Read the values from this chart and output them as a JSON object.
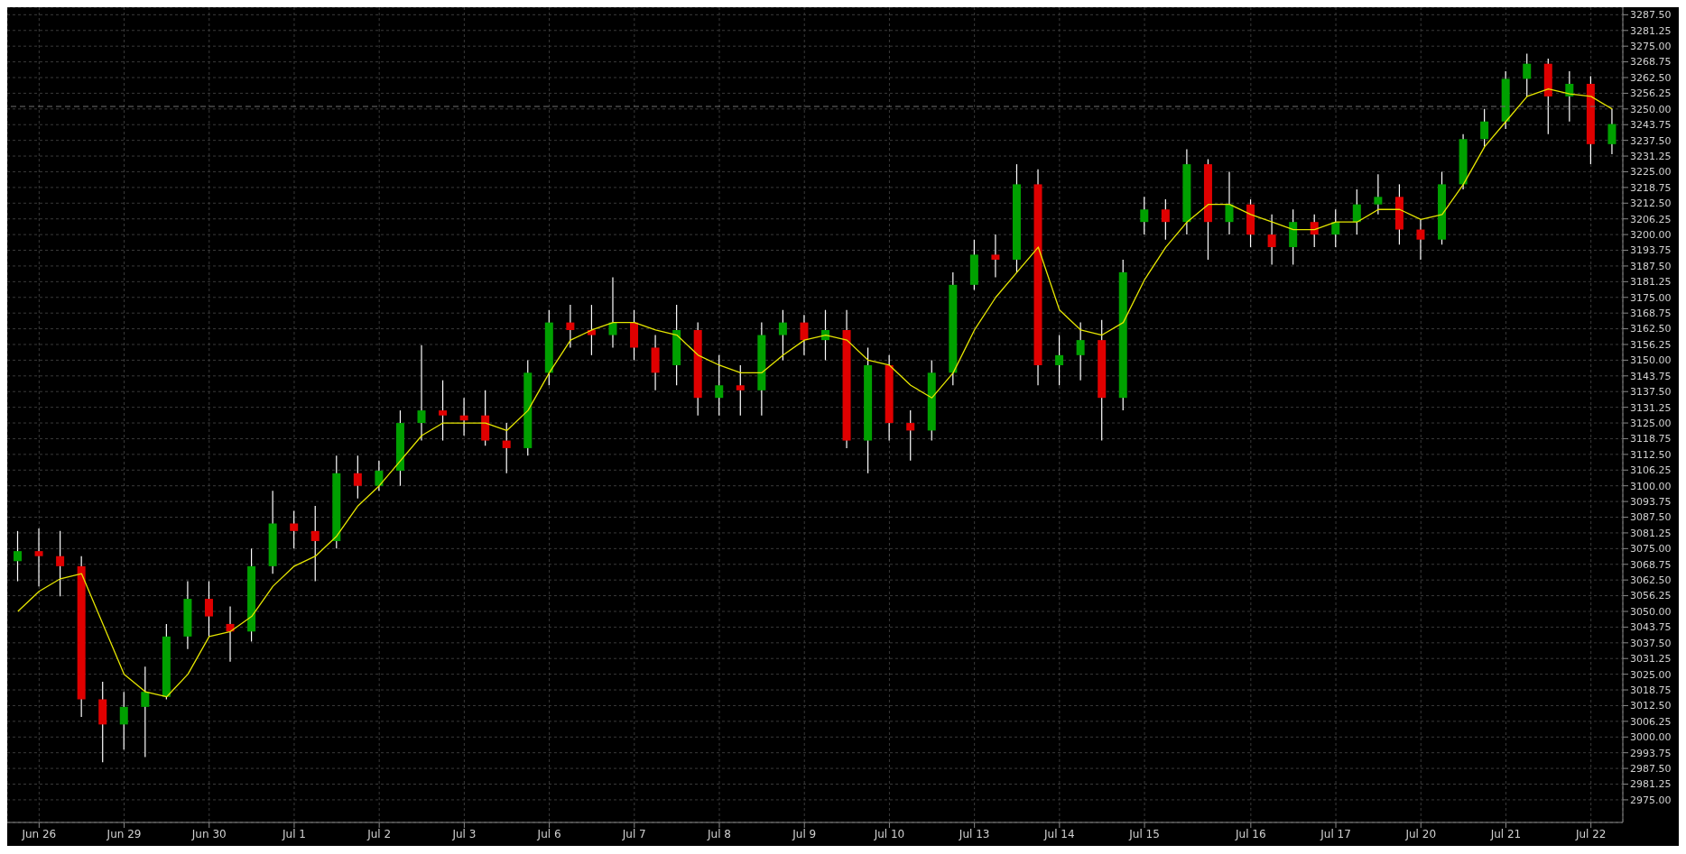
{
  "chart_data": {
    "type": "candlestick",
    "categories": [
      null,
      "Jun 26",
      null,
      null,
      null,
      "Jun 29",
      null,
      null,
      null,
      "Jun 30",
      null,
      null,
      null,
      "Jul 1",
      null,
      null,
      null,
      "Jul 2",
      null,
      null,
      null,
      "Jul 3",
      null,
      null,
      null,
      "Jul 6",
      null,
      null,
      null,
      "Jul 7",
      null,
      null,
      null,
      "Jul 8",
      null,
      null,
      null,
      "Jul 9",
      null,
      null,
      null,
      "Jul 10",
      null,
      null,
      null,
      "Jul 13",
      null,
      null,
      null,
      "Jul 14",
      null,
      null,
      null,
      "Jul 15",
      null,
      null,
      null,
      null,
      "Jul 16",
      null,
      null,
      null,
      "Jul 17",
      null,
      null,
      null,
      "Jul 20",
      null,
      null,
      null,
      "Jul 21",
      null,
      null,
      null,
      "Jul 22",
      null
    ],
    "ohlc": [
      [
        3070,
        3082,
        3062,
        3074
      ],
      [
        3074,
        3083,
        3060,
        3072
      ],
      [
        3072,
        3082,
        3056,
        3068
      ],
      [
        3068,
        3072,
        3008,
        3015
      ],
      [
        3015,
        3022,
        2990,
        3005
      ],
      [
        3005,
        3018,
        2995,
        3012
      ],
      [
        3012,
        3028,
        2992,
        3018
      ],
      [
        3016,
        3045,
        3015,
        3040
      ],
      [
        3040,
        3062,
        3035,
        3055
      ],
      [
        3055,
        3062,
        3040,
        3048
      ],
      [
        3045,
        3052,
        3030,
        3042
      ],
      [
        3042,
        3075,
        3038,
        3068
      ],
      [
        3068,
        3098,
        3065,
        3085
      ],
      [
        3085,
        3090,
        3075,
        3082
      ],
      [
        3082,
        3092,
        3062,
        3078
      ],
      [
        3078,
        3112,
        3075,
        3105
      ],
      [
        3105,
        3112,
        3095,
        3100
      ],
      [
        3100,
        3110,
        3098,
        3106
      ],
      [
        3106,
        3130,
        3100,
        3125
      ],
      [
        3125,
        3156,
        3118,
        3130
      ],
      [
        3130,
        3142,
        3118,
        3128
      ],
      [
        3128,
        3135,
        3120,
        3126
      ],
      [
        3128,
        3138,
        3116,
        3118
      ],
      [
        3118,
        3125,
        3105,
        3115
      ],
      [
        3115,
        3150,
        3112,
        3145
      ],
      [
        3145,
        3170,
        3140,
        3165
      ],
      [
        3165,
        3172,
        3155,
        3162
      ],
      [
        3162,
        3172,
        3152,
        3160
      ],
      [
        3160,
        3183,
        3155,
        3165
      ],
      [
        3165,
        3170,
        3150,
        3155
      ],
      [
        3155,
        3160,
        3138,
        3145
      ],
      [
        3148,
        3172,
        3140,
        3162
      ],
      [
        3162,
        3165,
        3128,
        3135
      ],
      [
        3135,
        3152,
        3128,
        3140
      ],
      [
        3140,
        3148,
        3128,
        3138
      ],
      [
        3138,
        3165,
        3128,
        3160
      ],
      [
        3160,
        3170,
        3150,
        3165
      ],
      [
        3165,
        3168,
        3152,
        3158
      ],
      [
        3158,
        3170,
        3150,
        3162
      ],
      [
        3162,
        3170,
        3115,
        3118
      ],
      [
        3118,
        3155,
        3105,
        3148
      ],
      [
        3148,
        3152,
        3118,
        3125
      ],
      [
        3125,
        3130,
        3110,
        3122
      ],
      [
        3122,
        3150,
        3118,
        3145
      ],
      [
        3145,
        3185,
        3140,
        3180
      ],
      [
        3180,
        3198,
        3178,
        3192
      ],
      [
        3192,
        3200,
        3183,
        3190
      ],
      [
        3190,
        3228,
        3185,
        3220
      ],
      [
        3220,
        3226,
        3140,
        3148
      ],
      [
        3148,
        3160,
        3140,
        3152
      ],
      [
        3152,
        3165,
        3142,
        3158
      ],
      [
        3158,
        3166,
        3118,
        3135
      ],
      [
        3135,
        3190,
        3130,
        3185
      ],
      [
        3205,
        3215,
        3200,
        3210
      ],
      [
        3210,
        3214,
        3198,
        3205
      ],
      [
        3205,
        3234,
        3200,
        3228
      ],
      [
        3228,
        3230,
        3190,
        3205
      ],
      [
        3205,
        3225,
        3200,
        3212
      ],
      [
        3212,
        3214,
        3195,
        3200
      ],
      [
        3200,
        3208,
        3188,
        3195
      ],
      [
        3195,
        3210,
        3188,
        3205
      ],
      [
        3205,
        3208,
        3195,
        3200
      ],
      [
        3200,
        3210,
        3195,
        3205
      ],
      [
        3205,
        3218,
        3200,
        3212
      ],
      [
        3212,
        3224,
        3208,
        3215
      ],
      [
        3215,
        3220,
        3196,
        3202
      ],
      [
        3202,
        3206,
        3190,
        3198
      ],
      [
        3198,
        3225,
        3196,
        3220
      ],
      [
        3220,
        3240,
        3218,
        3238
      ],
      [
        3238,
        3250,
        3235,
        3245
      ],
      [
        3245,
        3265,
        3242,
        3262
      ],
      [
        3262,
        3272,
        3255,
        3268
      ],
      [
        3268,
        3270,
        3240,
        3255
      ],
      [
        3255,
        3265,
        3245,
        3260
      ],
      [
        3260,
        3263,
        3228,
        3236
      ],
      [
        3236,
        3250,
        3232,
        3244
      ]
    ],
    "series": [
      {
        "type": "line",
        "color": "#e6e600",
        "values": [
          3050,
          3058,
          3063,
          3065,
          3045,
          3025,
          3018,
          3016,
          3025,
          3040,
          3042,
          3048,
          3060,
          3068,
          3072,
          3080,
          3092,
          3100,
          3110,
          3120,
          3125,
          3125,
          3125,
          3122,
          3130,
          3145,
          3158,
          3162,
          3165,
          3165,
          3162,
          3160,
          3152,
          3148,
          3145,
          3145,
          3152,
          3158,
          3160,
          3158,
          3150,
          3148,
          3140,
          3135,
          3145,
          3162,
          3175,
          3185,
          3195,
          3170,
          3162,
          3160,
          3165,
          3182,
          3195,
          3205,
          3212,
          3212,
          3208,
          3205,
          3202,
          3202,
          3205,
          3205,
          3210,
          3210,
          3206,
          3208,
          3220,
          3235,
          3245,
          3255,
          3258,
          3256,
          3255,
          3250
        ]
      }
    ],
    "ylim": [
      2966,
      3290.5
    ],
    "yticks": [
      {
        "value": 2975,
        "label": "2975.00"
      },
      {
        "value": 2981.25,
        "label": "2981.25"
      },
      {
        "value": 2987.5,
        "label": "2987.50"
      },
      {
        "value": 2993.75,
        "label": "2993.75"
      },
      {
        "value": 3000,
        "label": "3000.00"
      },
      {
        "value": 3006.25,
        "label": "3006.25"
      },
      {
        "value": 3012.5,
        "label": "3012.50"
      },
      {
        "value": 3018.75,
        "label": "3018.75"
      },
      {
        "value": 3025,
        "label": "3025.00"
      },
      {
        "value": 3031.25,
        "label": "3031.25"
      },
      {
        "value": 3037.5,
        "label": "3037.50"
      },
      {
        "value": 3043.75,
        "label": "3043.75"
      },
      {
        "value": 3050,
        "label": "3050.00"
      },
      {
        "value": 3056.25,
        "label": "3056.25"
      },
      {
        "value": 3062.5,
        "label": "3062.50"
      },
      {
        "value": 3068.75,
        "label": "3068.75"
      },
      {
        "value": 3075,
        "label": "3075.00"
      },
      {
        "value": 3081.25,
        "label": "3081.25"
      },
      {
        "value": 3087.5,
        "label": "3087.50"
      },
      {
        "value": 3093.75,
        "label": "3093.75"
      },
      {
        "value": 3100,
        "label": "3100.00"
      },
      {
        "value": 3106.25,
        "label": "3106.25"
      },
      {
        "value": 3112.5,
        "label": "3112.50"
      },
      {
        "value": 3118.75,
        "label": "3118.75"
      },
      {
        "value": 3125,
        "label": "3125.00"
      },
      {
        "value": 3131.25,
        "label": "3131.25"
      },
      {
        "value": 3137.5,
        "label": "3137.50"
      },
      {
        "value": 3143.75,
        "label": "3143.75"
      },
      {
        "value": 3150,
        "label": "3150.00"
      },
      {
        "value": 3156.25,
        "label": "3156.25"
      },
      {
        "value": 3162.5,
        "label": "3162.50"
      },
      {
        "value": 3168.75,
        "label": "3168.75"
      },
      {
        "value": 3175,
        "label": "3175.00"
      },
      {
        "value": 3181.25,
        "label": "3181.25"
      },
      {
        "value": 3187.5,
        "label": "3187.50"
      },
      {
        "value": 3193.75,
        "label": "3193.75"
      },
      {
        "value": 3200,
        "label": "3200.00"
      },
      {
        "value": 3206.25,
        "label": "3206.25"
      },
      {
        "value": 3212.5,
        "label": "3212.50"
      },
      {
        "value": 3218.75,
        "label": "3218.75"
      },
      {
        "value": 3225,
        "label": "3225.00"
      },
      {
        "value": 3231.25,
        "label": "3231.25"
      },
      {
        "value": 3237.5,
        "label": "3237.50"
      },
      {
        "value": 3243.75,
        "label": "3243.75"
      },
      {
        "value": 3250,
        "label": "3250.00"
      },
      {
        "value": 3256.25,
        "label": "3256.25"
      },
      {
        "value": 3262.5,
        "label": "3262.50"
      },
      {
        "value": 3268.75,
        "label": "3268.75"
      },
      {
        "value": 3275,
        "label": "3275.00"
      },
      {
        "value": 3281.25,
        "label": "3281.25"
      },
      {
        "value": 3287.5,
        "label": "3287.50"
      }
    ],
    "ref_lines": [
      {
        "axis": "y",
        "value": 3251,
        "color": "#707070",
        "line_style": "dashed"
      }
    ],
    "grid": true
  }
}
